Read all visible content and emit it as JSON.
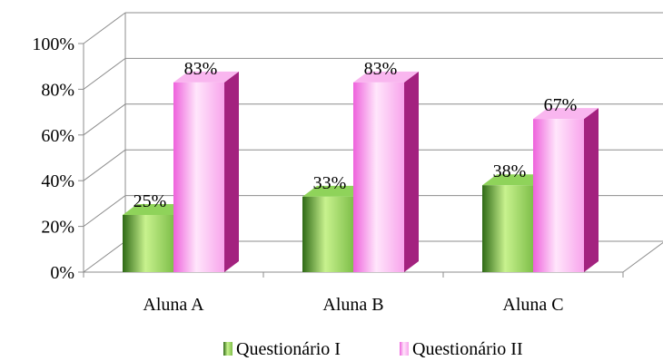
{
  "chart_data": {
    "type": "bar",
    "categories": [
      "Aluna A",
      "Aluna B",
      "Aluna C"
    ],
    "series": [
      {
        "name": "Questionário I",
        "values": [
          25,
          33,
          38
        ],
        "labels": [
          "25%",
          "33%",
          "38%"
        ],
        "color": "#6aa93a"
      },
      {
        "name": "Questionário II",
        "values": [
          83,
          83,
          67
        ],
        "labels": [
          "83%",
          "83%",
          "67%"
        ],
        "color": "#f59ae8"
      }
    ],
    "ylim": [
      0,
      100
    ],
    "yticks": [
      "0%",
      "20%",
      "40%",
      "60%",
      "80%",
      "100%"
    ],
    "grid": true,
    "three_d": true,
    "legend": "bottom"
  }
}
